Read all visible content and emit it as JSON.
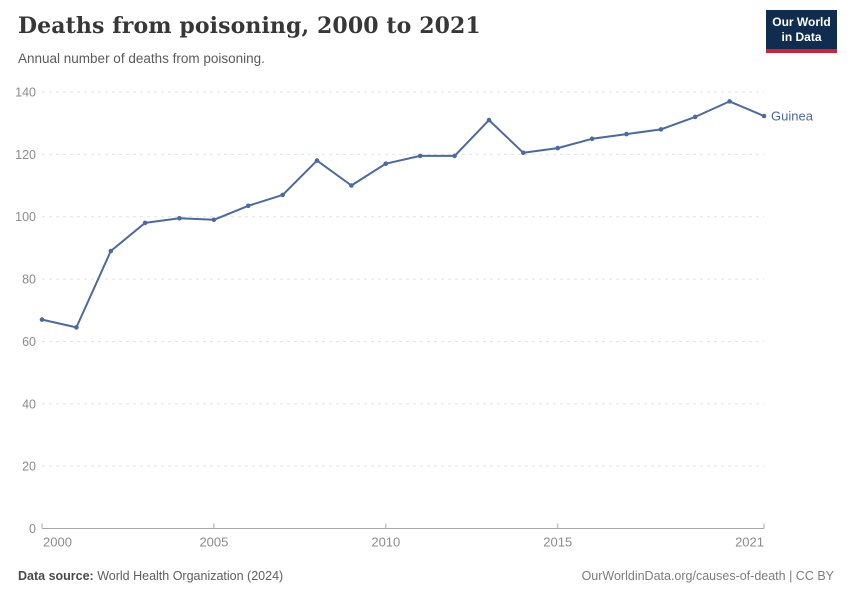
{
  "header": {
    "title": "Deaths from poisoning, 2000 to 2021",
    "subtitle": "Annual number of deaths from poisoning."
  },
  "logo": {
    "line1": "Our World",
    "line2": "in Data",
    "bg_color": "#102d50",
    "accent_color": "#c9243c"
  },
  "footer": {
    "source_label": "Data source:",
    "source_text": " World Health Organization (2024)",
    "link_text": "OurWorldinData.org/causes-of-death | CC BY"
  },
  "chart_data": {
    "type": "line",
    "title": "Deaths from poisoning, 2000 to 2021",
    "subtitle": "Annual number of deaths from poisoning.",
    "xlabel": "",
    "ylabel": "",
    "ylim": [
      0,
      140
    ],
    "yticks": [
      0,
      20,
      40,
      60,
      80,
      100,
      120,
      140
    ],
    "xticks": [
      2000,
      2005,
      2010,
      2015,
      2021
    ],
    "grid": "horizontal-dashed",
    "legend_position": "end-of-line-label",
    "grid_color": "#e3e3e3",
    "axis_color": "#a8a8a8",
    "tick_label_color": "#8c8c8c",
    "series": [
      {
        "name": "Guinea",
        "color": "#4C6A9C",
        "x": [
          2000,
          2001,
          2002,
          2003,
          2004,
          2005,
          2006,
          2007,
          2008,
          2009,
          2010,
          2011,
          2012,
          2013,
          2014,
          2015,
          2016,
          2017,
          2018,
          2019,
          2020,
          2021
        ],
        "values": [
          67,
          64.5,
          89,
          98,
          99.5,
          99,
          103.5,
          107,
          118,
          110,
          117,
          119.5,
          119.5,
          131,
          120.5,
          122,
          125,
          126.5,
          128,
          132,
          137,
          132.3
        ]
      }
    ]
  }
}
